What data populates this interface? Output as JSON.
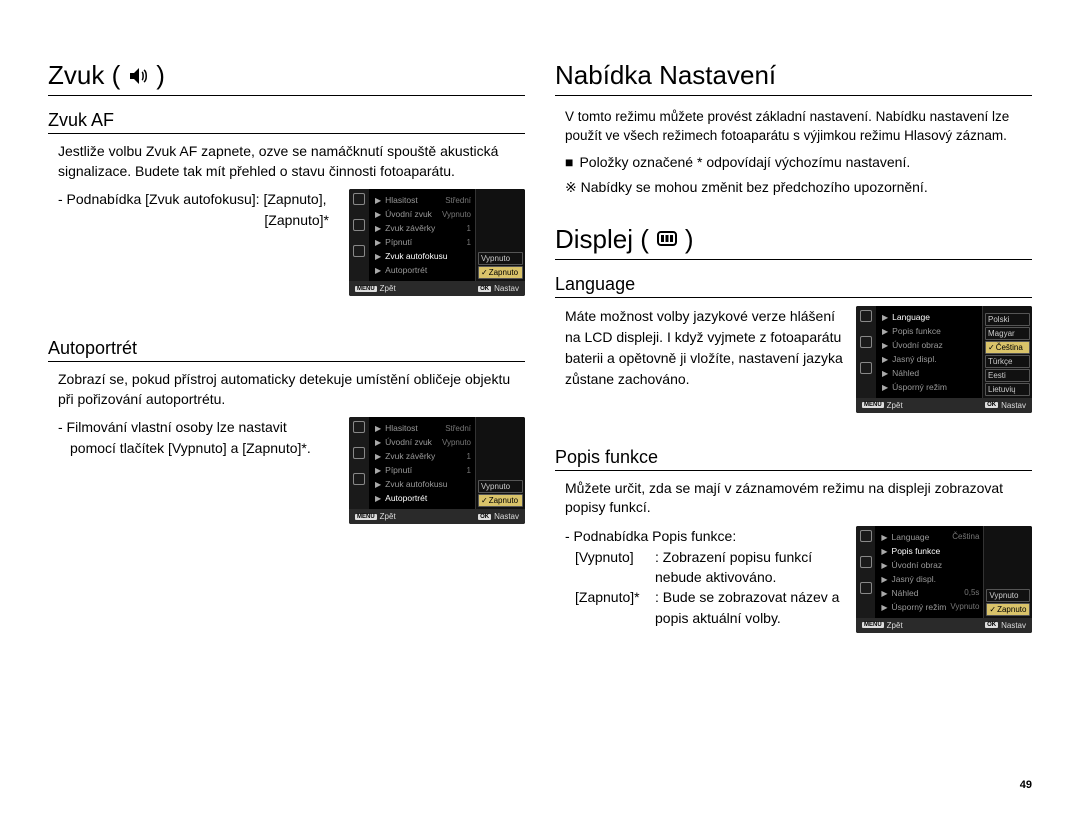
{
  "left": {
    "title": "Zvuk (",
    "title_close": ")",
    "zvuk_af": {
      "heading": "Zvuk AF",
      "text": "Jestliže volbu Zvuk AF zapnete, ozve se namáčknutí spouště akustická signalizace. Budete tak mít přehled o stavu činnosti fotoaparátu.",
      "sub1": "- Podnabídka [Zvuk autofokusu]: [Zapnuto],",
      "sub2": "[Zapnuto]*",
      "menu": {
        "rows": [
          {
            "label": "Hlasitost",
            "val": "Střední"
          },
          {
            "label": "Úvodní zvuk",
            "val": "Vypnuto"
          },
          {
            "label": "Zvuk závěrky",
            "val": "1"
          },
          {
            "label": "Pípnutí",
            "val": "1"
          },
          {
            "label": "Zvuk autofokusu",
            "val": "",
            "hl": true
          },
          {
            "label": "Autoportrét",
            "val": ""
          }
        ],
        "opts": [
          "Vypnuto",
          "Zapnuto"
        ],
        "sel_idx": 1,
        "footer_left": "Zpět",
        "footer_left_key": "MENU",
        "footer_right": "Nastav",
        "footer_right_key": "OK"
      }
    },
    "autoportret": {
      "heading": "Autoportrét",
      "text": "Zobrazí se, pokud přístroj automaticky detekuje umístění obličeje objektu při pořizování autoportrétu.",
      "sub1": "- Filmování vlastní osoby lze nastavit",
      "sub2": "pomocí tlačítek [Vypnuto] a [Zapnuto]*.",
      "menu": {
        "rows": [
          {
            "label": "Hlasitost",
            "val": "Střední"
          },
          {
            "label": "Úvodní zvuk",
            "val": "Vypnuto"
          },
          {
            "label": "Zvuk závěrky",
            "val": "1"
          },
          {
            "label": "Pípnutí",
            "val": "1"
          },
          {
            "label": "Zvuk autofokusu",
            "val": ""
          },
          {
            "label": "Autoportrét",
            "val": "",
            "hl": true
          }
        ],
        "opts": [
          "Vypnuto",
          "Zapnuto"
        ],
        "sel_idx": 1,
        "footer_left": "Zpět",
        "footer_left_key": "MENU",
        "footer_right": "Nastav",
        "footer_right_key": "OK"
      }
    }
  },
  "right": {
    "title_settings": "Nabídka Nastavení",
    "settings_text": "V tomto režimu můžete provést základní nastavení. Nabídku nastavení lze použít ve všech režimech fotoaparátu s výjimkou režimu Hlasový záznam.",
    "bullet1": "Položky označené * odpovídají výchozímu nastavení.",
    "note": "※ Nabídky se mohou změnit bez předchozího upozornění.",
    "title_display": "Displej (",
    "title_display_close": ")",
    "language": {
      "heading": "Language",
      "text": "Máte možnost volby jazykové verze hlášení na LCD displeji. I když vyjmete z fotoaparátu baterii a opětovně ji vložíte, nastavení jazyka zůstane zachováno.",
      "menu": {
        "rows": [
          {
            "label": "Language",
            "val": "",
            "hl": true
          },
          {
            "label": "Popis funkce",
            "val": ""
          },
          {
            "label": "Úvodní obraz",
            "val": ""
          },
          {
            "label": "Jasný displ.",
            "val": ""
          },
          {
            "label": "Náhled",
            "val": ""
          },
          {
            "label": "Úsporný režim",
            "val": ""
          }
        ],
        "opts": [
          "Polski",
          "Magyar",
          "Čeština",
          "Türkçe",
          "Eesti",
          "Lietuvių"
        ],
        "sel_idx": 2,
        "footer_left": "Zpět",
        "footer_left_key": "MENU",
        "footer_right": "Nastav",
        "footer_right_key": "OK"
      }
    },
    "popis": {
      "heading": "Popis funkce",
      "text": "Můžete určit, zda se mají v záznamovém režimu na displeji zobrazovat popisy funkcí.",
      "sub_head": "- Podnabídka Popis funkce:",
      "row1_k": "[Vypnuto]",
      "row1_v": ": Zobrazení popisu funkcí nebude aktivováno.",
      "row2_k": "[Zapnuto]*",
      "row2_v": ": Bude se zobrazovat název a popis aktuální volby.",
      "menu": {
        "rows": [
          {
            "label": "Language",
            "val": "Čeština"
          },
          {
            "label": "Popis funkce",
            "val": "",
            "hl": true
          },
          {
            "label": "Úvodní obraz",
            "val": ""
          },
          {
            "label": "Jasný displ.",
            "val": ""
          },
          {
            "label": "Náhled",
            "val": "0,5s"
          },
          {
            "label": "Úsporný režim",
            "val": "Vypnuto"
          }
        ],
        "opts": [
          "Vypnuto",
          "Zapnuto"
        ],
        "sel_idx": 1,
        "footer_left": "Zpět",
        "footer_left_key": "MENU",
        "footer_right": "Nastav",
        "footer_right_key": "OK"
      }
    }
  },
  "page_number": "49"
}
